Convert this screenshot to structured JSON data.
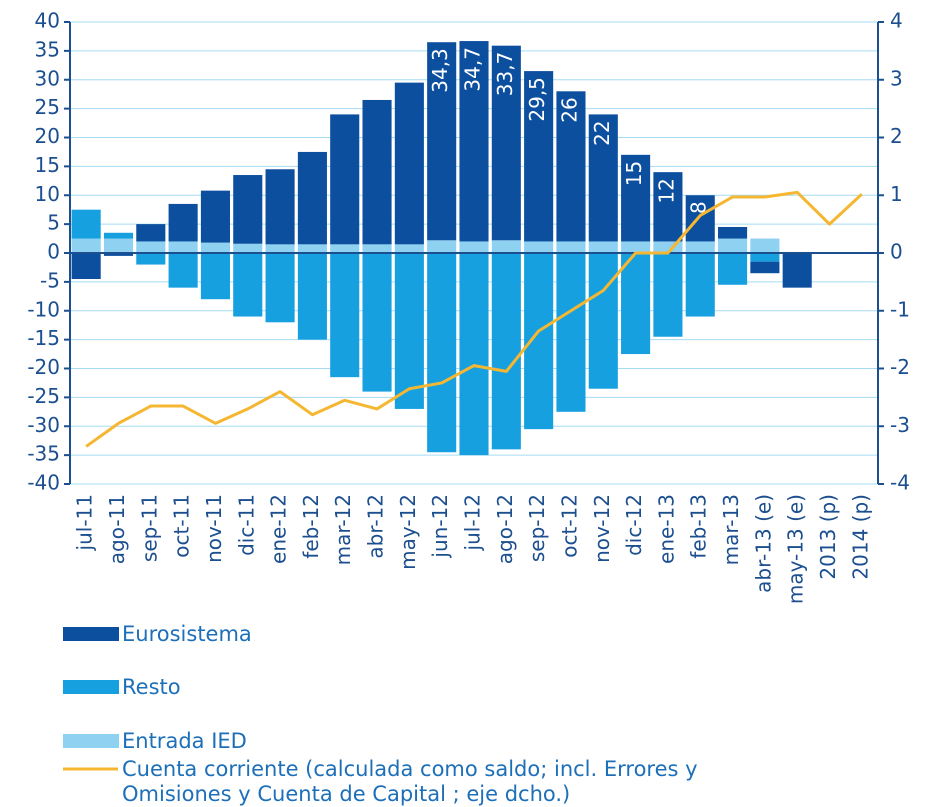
{
  "chart_data": {
    "type": "bar",
    "categories": [
      "jul-11",
      "ago-11",
      "sep-11",
      "oct-11",
      "nov-11",
      "dic-11",
      "ene-12",
      "feb-12",
      "mar-12",
      "abr-12",
      "may-12",
      "jun-12",
      "jul-12",
      "ago-12",
      "sep-12",
      "oct-12",
      "nov-12",
      "dic-12",
      "ene-13",
      "feb-13",
      "mar-13",
      "abr-13 (e)",
      "may-13 (e)",
      "2013 (p)",
      "2014 (p)"
    ],
    "series": [
      {
        "name": "Entrada IED",
        "color": "#8fd1f1",
        "values": [
          2.5,
          2.5,
          2,
          2,
          1.8,
          1.6,
          1.5,
          1.5,
          1.5,
          1.5,
          1.5,
          2.2,
          2,
          2.2,
          2,
          2,
          2,
          2,
          2,
          2,
          2.5,
          2.5,
          0,
          null,
          null
        ]
      },
      {
        "name": "Resto",
        "color": "#16a0e0",
        "values": [
          5,
          1,
          -2,
          -6,
          -8,
          -11,
          -12,
          -15,
          -21.5,
          -24,
          -27,
          -34.5,
          -35,
          -34,
          -30.5,
          -27.5,
          -23.5,
          -17.5,
          -14.5,
          -11,
          -5.5,
          -1.5,
          0,
          null,
          null
        ]
      },
      {
        "name": "Eurosistema",
        "color": "#0c4f9e",
        "values": [
          -4.5,
          -0.5,
          3,
          6.5,
          9,
          11.9,
          13,
          16,
          22.5,
          25,
          28,
          34.3,
          34.7,
          33.7,
          29.5,
          26,
          22,
          15,
          12,
          8,
          2,
          -2,
          -6,
          null,
          null
        ],
        "value_labels": [
          null,
          null,
          null,
          null,
          null,
          null,
          null,
          null,
          null,
          null,
          null,
          "34,3",
          "34,7",
          "33,7",
          "29,5",
          "26",
          "22",
          "15",
          "12",
          "8",
          null,
          null,
          null,
          null,
          null
        ]
      },
      {
        "name": "Cuenta corriente (calculada como saldo; incl. Errores y Omisiones y Cuenta de Capital ; eje dcho.)",
        "type": "line",
        "axis": "y2",
        "color": "#f5b731",
        "values": [
          -3.35,
          -2.95,
          -2.65,
          -2.65,
          -2.95,
          -2.7,
          -2.4,
          -2.8,
          -2.55,
          -2.7,
          -2.35,
          -2.25,
          -1.95,
          -2.05,
          -1.35,
          -1.0,
          -0.65,
          0,
          0,
          0.65,
          0.97,
          0.97,
          1.05,
          0.5,
          1.02
        ]
      }
    ],
    "ylim": [
      -40,
      40
    ],
    "yticks": [
      -40,
      -35,
      -30,
      -25,
      -20,
      -15,
      -10,
      -5,
      0,
      5,
      10,
      15,
      20,
      25,
      30,
      35,
      40
    ],
    "y2lim": [
      -4,
      4
    ],
    "y2ticks": [
      -4,
      -3,
      -2,
      -1,
      0,
      1,
      2,
      3,
      4
    ],
    "grid": true,
    "legend": "bottom"
  }
}
